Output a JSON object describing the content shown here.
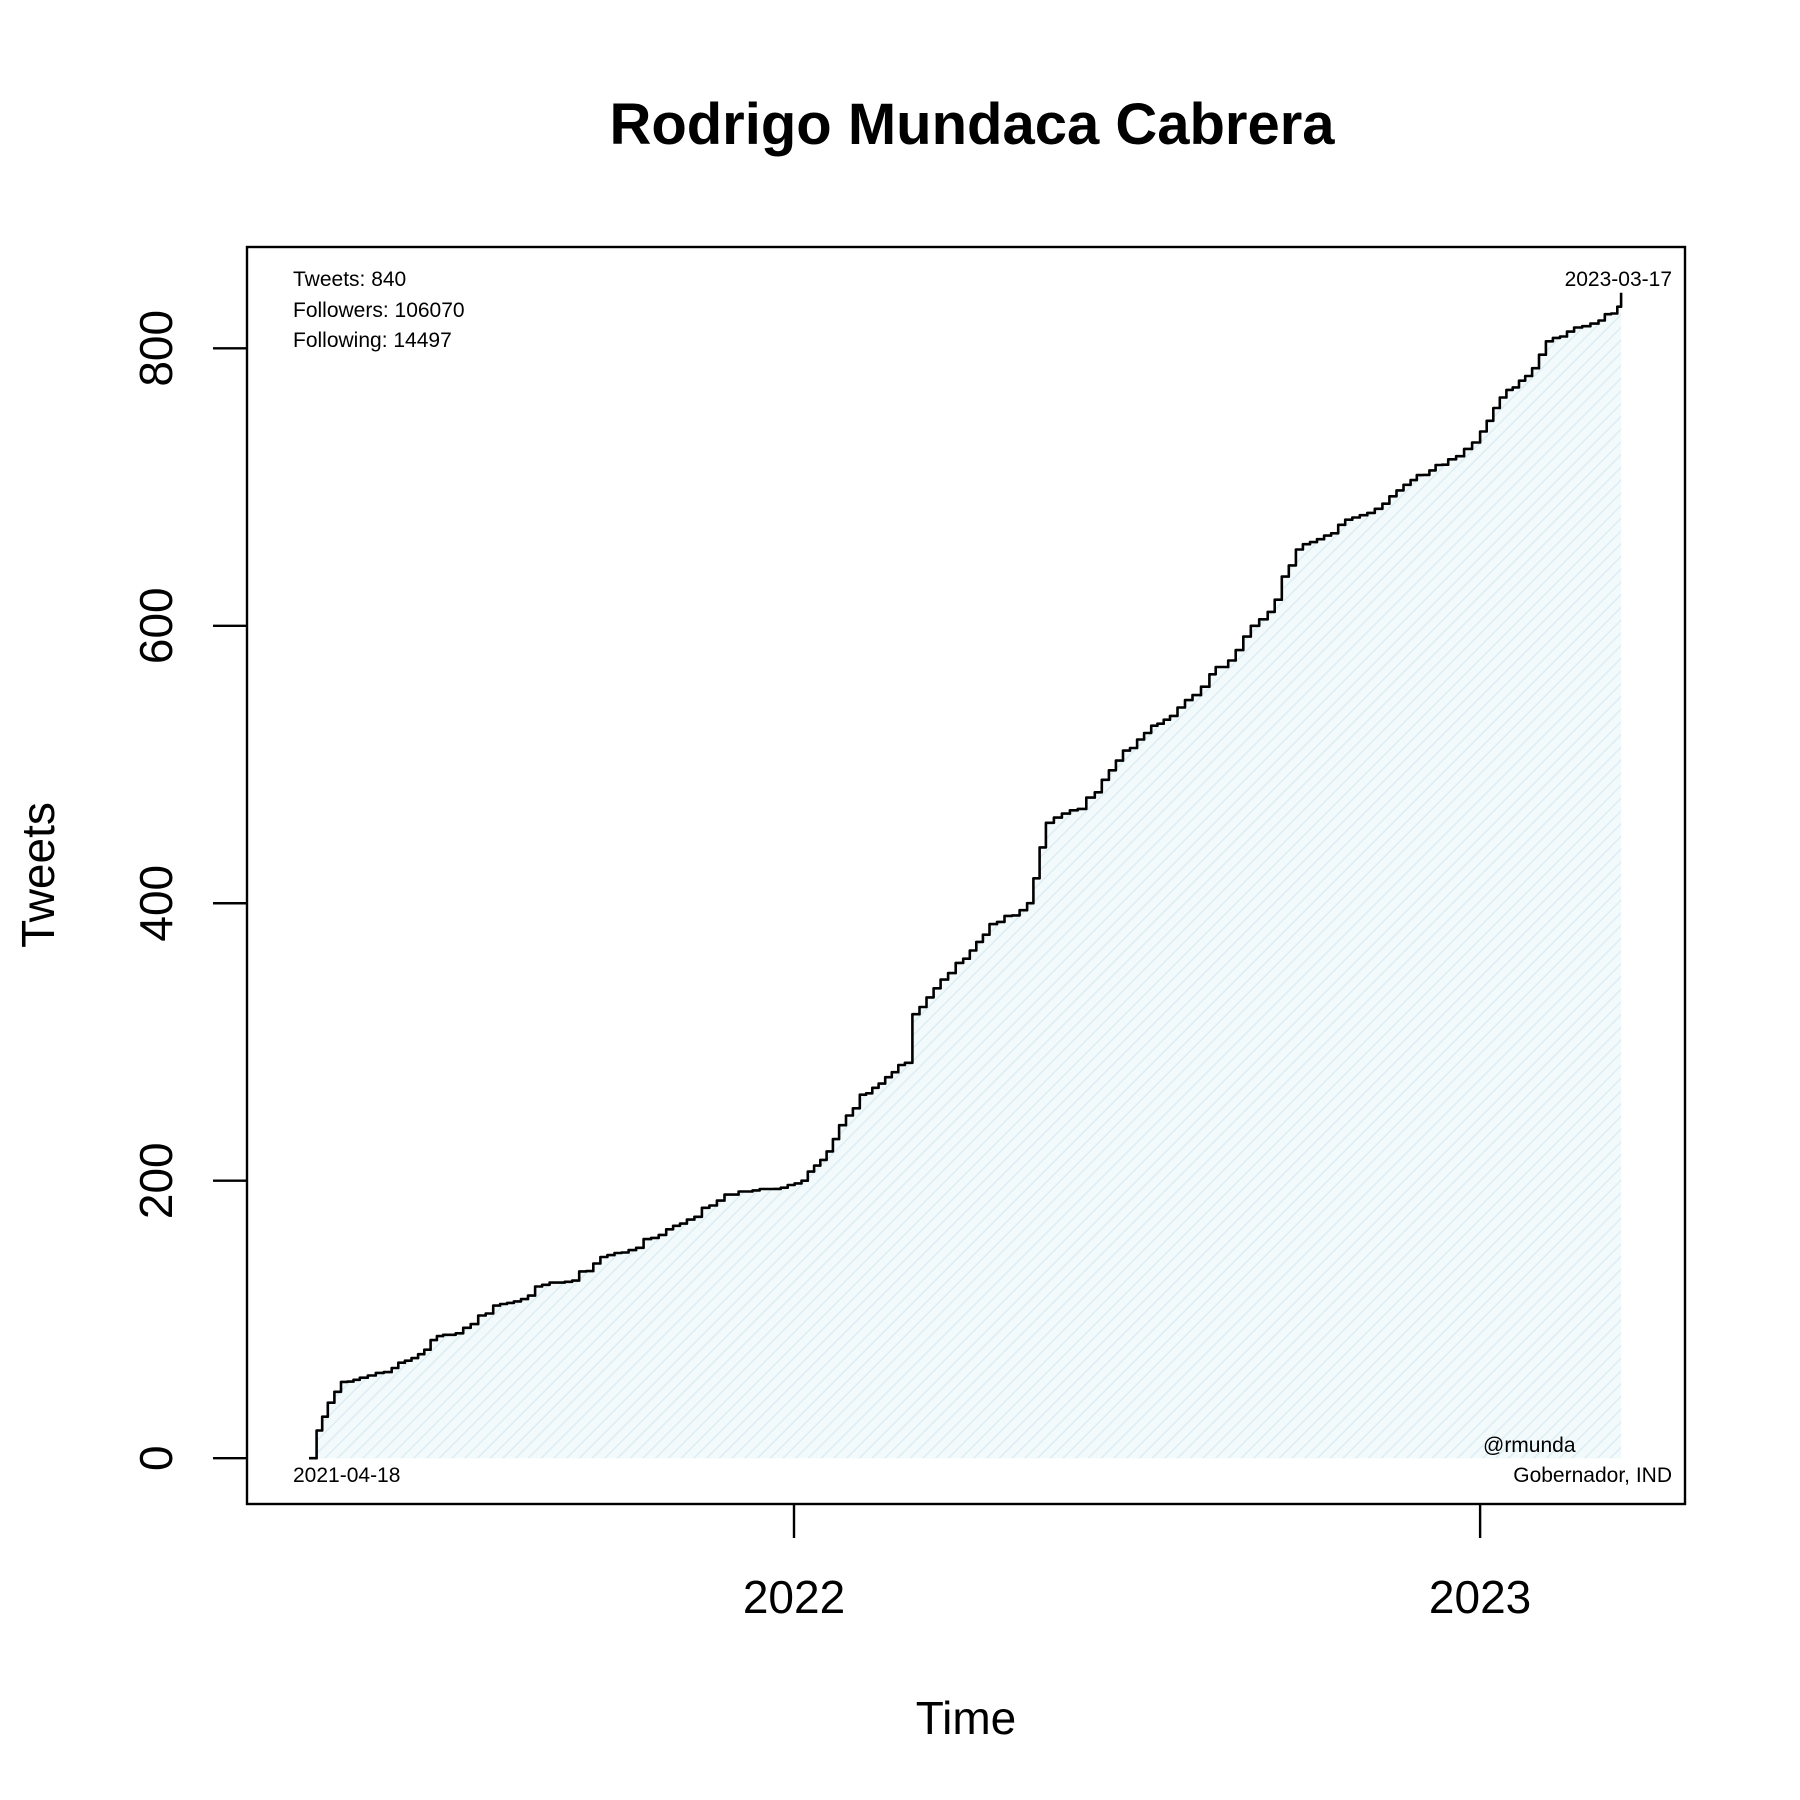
{
  "chart_data": {
    "type": "area",
    "title": "Rodrigo Mundaca Cabrera",
    "xlabel": "Time",
    "ylabel": "Tweets",
    "xlim": [
      "2021-03-16",
      "2023-04-20"
    ],
    "ylim": [
      -33,
      873
    ],
    "x_ticks": [
      {
        "date": "2022-01-01",
        "label": "2022"
      },
      {
        "date": "2023-01-01",
        "label": "2023"
      }
    ],
    "y_ticks": [
      0,
      200,
      400,
      600,
      800
    ],
    "grid": false,
    "colors": {
      "line": "#000000",
      "fill": "#e6f3f8"
    },
    "annotations": {
      "tweets": "Tweets: 840",
      "followers": "Followers: 106070",
      "following": "Following: 14497",
      "start_date": "2021-04-18",
      "end_date": "2023-03-17",
      "handle": "@rmunda",
      "role": "Gobernador, IND"
    },
    "series": [
      {
        "dates": [
          "2021-04-18",
          "2021-04-22",
          "2021-04-28",
          "2021-05-05",
          "2021-05-15",
          "2021-06-01",
          "2021-06-15",
          "2021-06-25",
          "2021-07-05",
          "2021-07-25",
          "2021-08-05",
          "2021-08-20",
          "2021-09-05",
          "2021-09-20",
          "2021-10-05",
          "2021-10-25",
          "2021-11-05",
          "2021-11-25",
          "2021-12-10",
          "2021-12-25",
          "2022-01-05",
          "2022-01-15",
          "2022-01-25",
          "2022-02-05",
          "2022-02-15",
          "2022-03-01",
          "2022-03-05",
          "2022-03-20",
          "2022-04-01",
          "2022-04-15",
          "2022-05-01",
          "2022-05-05",
          "2022-05-15",
          "2022-06-01",
          "2022-06-10",
          "2022-06-25",
          "2022-07-10",
          "2022-07-20",
          "2022-08-01",
          "2022-08-10",
          "2022-08-20",
          "2022-09-01",
          "2022-09-10",
          "2022-09-25",
          "2022-10-10",
          "2022-10-25",
          "2022-11-10",
          "2022-11-25",
          "2022-12-05",
          "2022-12-15",
          "2023-01-01",
          "2023-01-15",
          "2023-01-25",
          "2023-02-05",
          "2023-02-20",
          "2023-03-05",
          "2023-03-15",
          "2023-03-17"
        ],
        "values": [
          0,
          20,
          40,
          55,
          58,
          65,
          75,
          88,
          90,
          110,
          113,
          125,
          128,
          145,
          150,
          165,
          172,
          190,
          193,
          195,
          200,
          215,
          240,
          262,
          270,
          285,
          320,
          345,
          360,
          385,
          395,
          400,
          458,
          468,
          480,
          510,
          528,
          535,
          550,
          565,
          575,
          600,
          610,
          655,
          665,
          678,
          688,
          705,
          712,
          720,
          740,
          770,
          780,
          805,
          815,
          820,
          830,
          840
        ]
      }
    ]
  }
}
